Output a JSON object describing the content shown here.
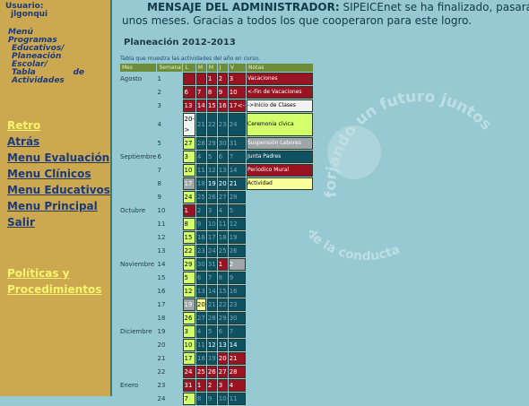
{
  "sidebar": {
    "user_label": "Usuario:",
    "user_name": "jlgonqui",
    "menu_path": [
      "Menú Programas",
      "Educativos/",
      "Planeación",
      "Escolar/",
      "Tabla",
      "de",
      "Actividades"
    ],
    "nav": [
      "Retro",
      "Atrás",
      "Menu Evaluación",
      "Menu Clínicos",
      "Menu Educativos",
      "Menu Principal",
      "Salir"
    ],
    "policy_line1": "Políticas y",
    "policy_line2": "Procedimientos"
  },
  "admin_message": {
    "title": "MENSAJE DEL ADMINISTRADOR:",
    "text": "SIPEICEnet se ha finalizado, pasará a rev",
    "line2": "unos meses. Gracias a todos los que cooperaron para este logro."
  },
  "watermark": {
    "text": "forjando un futuro juntos",
    "text2": "ncias de la conducta"
  },
  "planning": {
    "title": "Planeación 2012-2013",
    "note": "Tabla que muestra las actividades del año en curso.",
    "headers": [
      "Mes",
      "Semana",
      "L",
      "M",
      "M",
      "J",
      "V",
      "Notas"
    ],
    "rows": [
      {
        "mes": "Agosto",
        "sem": "1",
        "days": [
          [
            "",
            "v"
          ],
          [
            "",
            "v"
          ],
          [
            "1",
            "v"
          ],
          [
            "2",
            "v"
          ],
          [
            "3",
            "v"
          ]
        ],
        "note": [
          "Vacaciones",
          "v"
        ]
      },
      {
        "mes": "",
        "sem": "2",
        "days": [
          [
            "6",
            "f"
          ],
          [
            "7",
            "f"
          ],
          [
            "8",
            "f"
          ],
          [
            "9",
            "f"
          ],
          [
            "10",
            "f"
          ]
        ],
        "note": [
          "<-Fin de Vacaciones",
          "f"
        ]
      },
      {
        "mes": "",
        "sem": "3",
        "days": [
          [
            "13",
            "f"
          ],
          [
            "14",
            "f"
          ],
          [
            "15",
            "f"
          ],
          [
            "16",
            "f"
          ],
          [
            "17<-",
            "f"
          ]
        ],
        "note": [
          "->Inicio de Clases",
          "i"
        ]
      },
      {
        "mes": "",
        "sem": "4",
        "days": [
          [
            "20->",
            "i"
          ],
          [
            "21",
            "n"
          ],
          [
            "22",
            "n"
          ],
          [
            "23",
            "n"
          ],
          [
            "24",
            "n"
          ]
        ],
        "note": [
          "Ceremonia cívica",
          "c"
        ]
      },
      {
        "mes": "",
        "sem": "5",
        "days": [
          [
            "27",
            "c"
          ],
          [
            "28",
            "n"
          ],
          [
            "29",
            "n"
          ],
          [
            "30",
            "n"
          ],
          [
            "31",
            "n"
          ]
        ],
        "note": [
          "Suspensión Labores",
          "s"
        ]
      },
      {
        "mes": "Septiembre",
        "sem": "6",
        "days": [
          [
            "3",
            "c"
          ],
          [
            "4",
            "n"
          ],
          [
            "5",
            "n"
          ],
          [
            "6",
            "n"
          ],
          [
            "7",
            "n"
          ]
        ],
        "note": [
          "Junta Padres",
          "j"
        ]
      },
      {
        "mes": "",
        "sem": "7",
        "days": [
          [
            "10",
            "c"
          ],
          [
            "11",
            "n"
          ],
          [
            "12",
            "n"
          ],
          [
            "13",
            "n"
          ],
          [
            "14",
            "n"
          ]
        ],
        "note": [
          "Periodico Mural",
          "p"
        ]
      },
      {
        "mes": "",
        "sem": "8",
        "days": [
          [
            "17",
            "s"
          ],
          [
            "18",
            "n"
          ],
          [
            "19",
            "j"
          ],
          [
            "20",
            "j"
          ],
          [
            "21",
            "j"
          ]
        ],
        "note": [
          "Actividad",
          "a"
        ]
      },
      {
        "mes": "",
        "sem": "9",
        "days": [
          [
            "24",
            "c"
          ],
          [
            "25",
            "n"
          ],
          [
            "26",
            "n"
          ],
          [
            "27",
            "n"
          ],
          [
            "28",
            "n"
          ]
        ],
        "note": null
      },
      {
        "mes": "Octubre",
        "sem": "10",
        "days": [
          [
            "1",
            "p"
          ],
          [
            "2",
            "n"
          ],
          [
            "3",
            "n"
          ],
          [
            "4",
            "n"
          ],
          [
            "5",
            "n"
          ]
        ],
        "note": null
      },
      {
        "mes": "",
        "sem": "11",
        "days": [
          [
            "8",
            "c"
          ],
          [
            "9",
            "n"
          ],
          [
            "10",
            "n"
          ],
          [
            "11",
            "n"
          ],
          [
            "12",
            "n"
          ]
        ],
        "note": null
      },
      {
        "mes": "",
        "sem": "12",
        "days": [
          [
            "15",
            "c"
          ],
          [
            "16",
            "n"
          ],
          [
            "17",
            "n"
          ],
          [
            "18",
            "n"
          ],
          [
            "19",
            "n"
          ]
        ],
        "note": null
      },
      {
        "mes": "",
        "sem": "13",
        "days": [
          [
            "22",
            "c"
          ],
          [
            "23",
            "n"
          ],
          [
            "24",
            "n"
          ],
          [
            "25",
            "n"
          ],
          [
            "26",
            "n"
          ]
        ],
        "note": null
      },
      {
        "mes": "Noviembre",
        "sem": "14",
        "days": [
          [
            "29",
            "c"
          ],
          [
            "30",
            "n"
          ],
          [
            "31",
            "n"
          ],
          [
            "1",
            "f"
          ],
          [
            "2",
            "s"
          ]
        ],
        "note": null
      },
      {
        "mes": "",
        "sem": "15",
        "days": [
          [
            "5",
            "c"
          ],
          [
            "6",
            "n"
          ],
          [
            "7",
            "n"
          ],
          [
            "8",
            "n"
          ],
          [
            "9",
            "n"
          ]
        ],
        "note": null
      },
      {
        "mes": "",
        "sem": "16",
        "days": [
          [
            "12",
            "c"
          ],
          [
            "13",
            "n"
          ],
          [
            "14",
            "n"
          ],
          [
            "15",
            "n"
          ],
          [
            "16",
            "n"
          ]
        ],
        "note": null
      },
      {
        "mes": "",
        "sem": "17",
        "days": [
          [
            "19",
            "s"
          ],
          [
            "20",
            "a"
          ],
          [
            "21",
            "n"
          ],
          [
            "22",
            "n"
          ],
          [
            "23",
            "n"
          ]
        ],
        "note": null
      },
      {
        "mes": "",
        "sem": "18",
        "days": [
          [
            "26",
            "c"
          ],
          [
            "27",
            "n"
          ],
          [
            "28",
            "n"
          ],
          [
            "29",
            "n"
          ],
          [
            "30",
            "n"
          ]
        ],
        "note": null
      },
      {
        "mes": "Diciembre",
        "sem": "19",
        "days": [
          [
            "3",
            "c"
          ],
          [
            "4",
            "n"
          ],
          [
            "5",
            "n"
          ],
          [
            "6",
            "n"
          ],
          [
            "7",
            "n"
          ]
        ],
        "note": null
      },
      {
        "mes": "",
        "sem": "20",
        "days": [
          [
            "10",
            "c"
          ],
          [
            "11",
            "n"
          ],
          [
            "12",
            "j"
          ],
          [
            "13",
            "j"
          ],
          [
            "14",
            "j"
          ]
        ],
        "note": null
      },
      {
        "mes": "",
        "sem": "21",
        "days": [
          [
            "17",
            "c"
          ],
          [
            "18",
            "n"
          ],
          [
            "19",
            "n"
          ],
          [
            "20",
            "f"
          ],
          [
            "21",
            "f"
          ]
        ],
        "note": null
      },
      {
        "mes": "",
        "sem": "22",
        "days": [
          [
            "24",
            "f"
          ],
          [
            "25",
            "f"
          ],
          [
            "26",
            "f"
          ],
          [
            "27",
            "f"
          ],
          [
            "28",
            "f"
          ]
        ],
        "note": null
      },
      {
        "mes": "Enero",
        "sem": "23",
        "days": [
          [
            "31",
            "f"
          ],
          [
            "1",
            "f"
          ],
          [
            "2",
            "f"
          ],
          [
            "3",
            "f"
          ],
          [
            "4",
            "f"
          ]
        ],
        "note": null
      },
      {
        "mes": "",
        "sem": "24",
        "days": [
          [
            "7",
            "c"
          ],
          [
            "8",
            "n"
          ],
          [
            "9",
            "n"
          ],
          [
            "10",
            "n"
          ],
          [
            "11",
            "n"
          ]
        ],
        "note": null
      }
    ]
  }
}
